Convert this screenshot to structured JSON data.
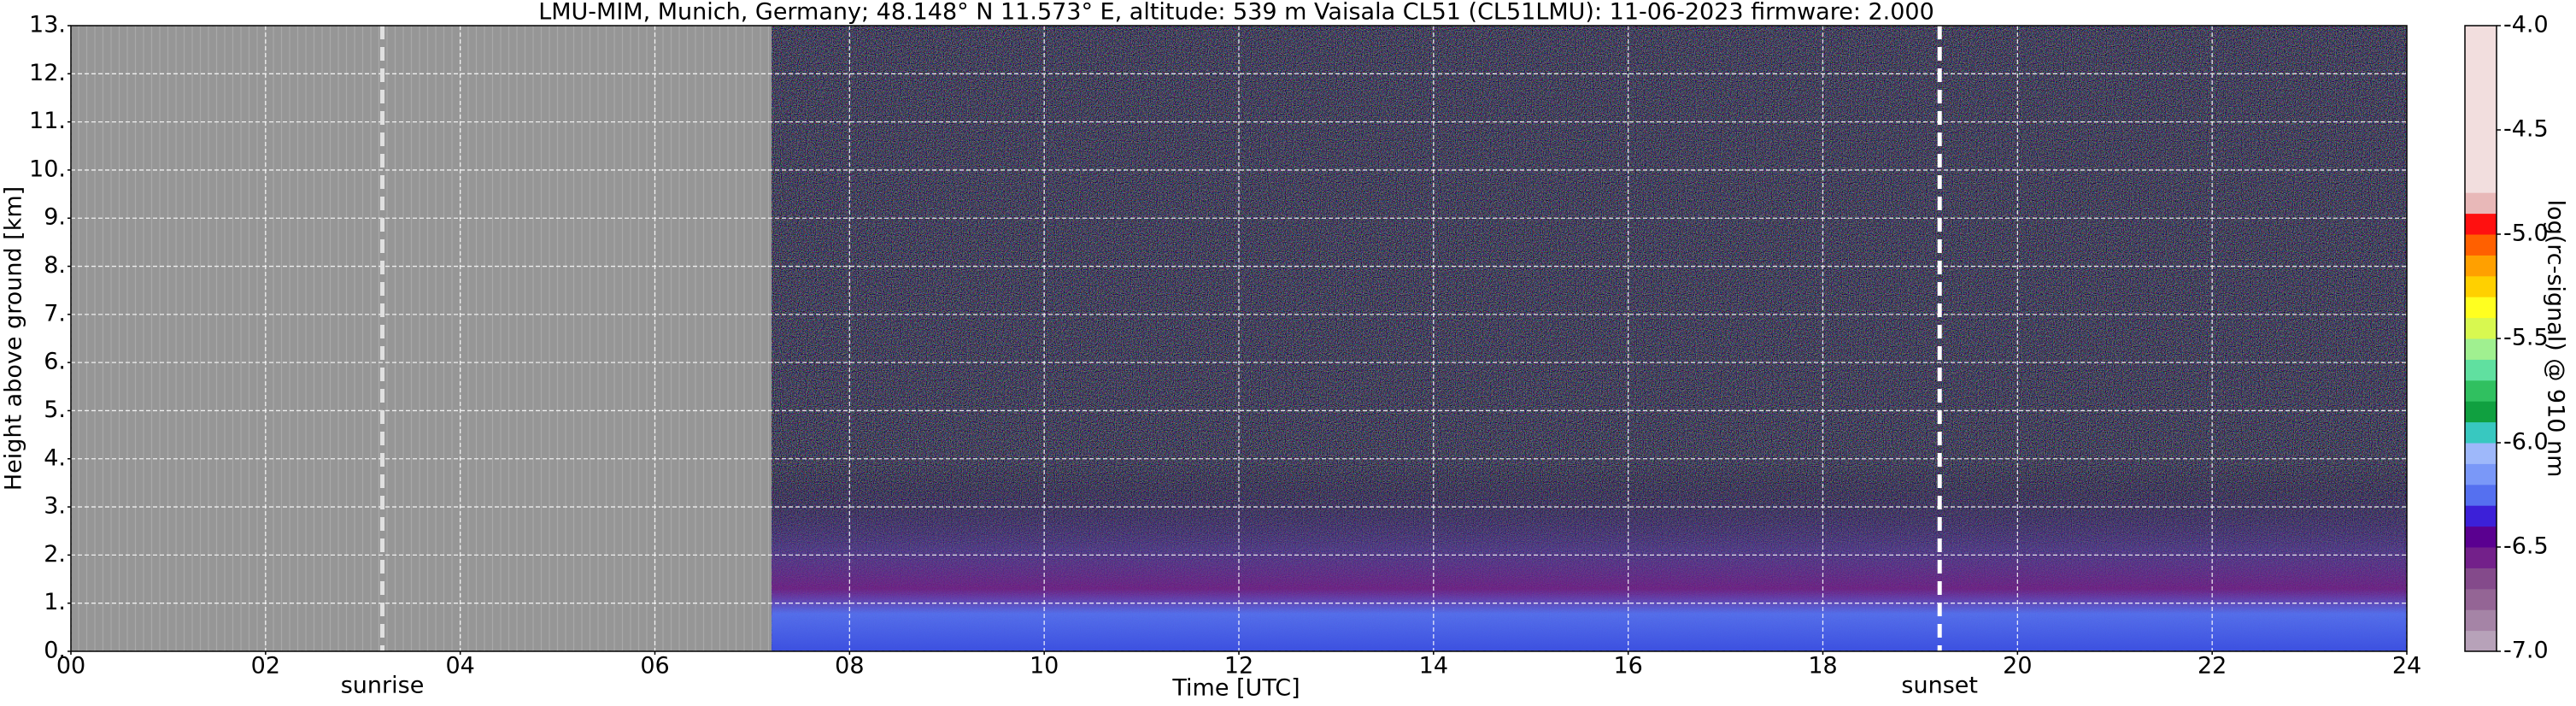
{
  "chart_data": {
    "type": "heatmap",
    "title": "LMU-MIM, Munich, Germany; 48.148° N 11.573° E, altitude: 539 m    Vaisala CL51 (CL51LMU): 11-06-2023    firmware: 2.000",
    "x_label": "Time [UTC]",
    "y_label": "Height above ground [km]",
    "xlim": [
      0,
      24
    ],
    "xticks": [
      {
        "value": 0,
        "label": "00"
      },
      {
        "value": 2,
        "label": "02"
      },
      {
        "value": 4,
        "label": "04"
      },
      {
        "value": 6,
        "label": "06"
      },
      {
        "value": 8,
        "label": "08"
      },
      10,
      12,
      14,
      16,
      18,
      20,
      22,
      24
    ],
    "ylim": [
      0,
      13
    ],
    "yticks": [
      {
        "value": 0,
        "label": "0."
      },
      {
        "value": 1,
        "label": "1."
      },
      {
        "value": 2,
        "label": "2."
      },
      {
        "value": 3,
        "label": "3."
      },
      {
        "value": 4,
        "label": "4."
      },
      {
        "value": 5,
        "label": "5."
      },
      {
        "value": 6,
        "label": "6."
      },
      {
        "value": 7,
        "label": "7."
      },
      {
        "value": 8,
        "label": "8."
      },
      {
        "value": 9,
        "label": "9."
      },
      {
        "value": 10,
        "label": "10."
      },
      {
        "value": 11,
        "label": "11."
      },
      {
        "value": 12,
        "label": "12."
      },
      {
        "value": 13,
        "label": "13."
      }
    ],
    "grid": true,
    "data_range": [
      7.2,
      24
    ],
    "annotations": [
      {
        "text": "sunrise",
        "x": 3.2
      },
      {
        "text": "sunset",
        "x": 19.2
      }
    ],
    "colorbar": {
      "label": "log(rc-signal) @ 910 nm",
      "lim": [
        -7,
        -4
      ],
      "ticks": [
        {
          "value": -4,
          "label": "-4.0"
        },
        -4.5,
        {
          "value": -5,
          "label": "-5.0"
        },
        -5.5,
        {
          "value": -6,
          "label": "-6.0"
        },
        -6.5,
        {
          "value": -7,
          "label": "-7.0"
        }
      ],
      "levels": [
        -7,
        -6.9,
        -6.8,
        -6.7,
        -6.6,
        -6.5,
        -6.4,
        -6.3,
        -6.2,
        -6.1,
        -6.0,
        -5.9,
        -5.8,
        -5.7,
        -5.6,
        -5.5,
        -5.4,
        -5.3,
        -5.2,
        -5.1,
        -5.0,
        -4.9,
        -4.8,
        -4.0
      ],
      "colors": [
        "#b7a2b9",
        "#a584a6",
        "#946595",
        "#844a8b",
        "#73208a",
        "#5a0090",
        "#3c20d8",
        "#5570f0",
        "#7a98f8",
        "#9eb8fa",
        "#38c8c0",
        "#10a040",
        "#30c060",
        "#60e0a0",
        "#a0f090",
        "#d8f850",
        "#ffff20",
        "#ffd000",
        "#ffa000",
        "#ff6000",
        "#ff1010",
        "#e8b8b8",
        "#f2dede",
        "#ffffff"
      ]
    }
  }
}
